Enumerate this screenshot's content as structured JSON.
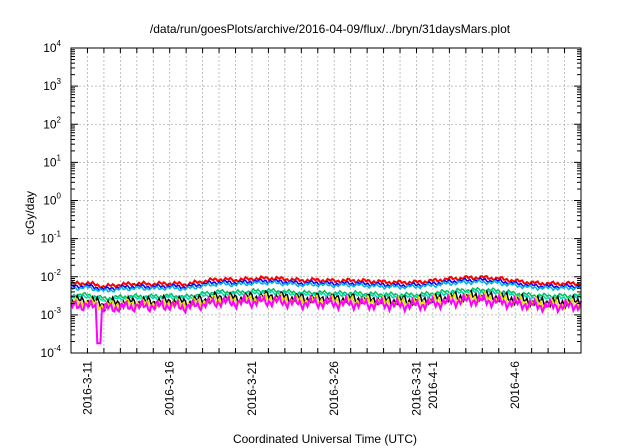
{
  "chart_data": {
    "type": "line",
    "title": "/data/run/goesPlots/archive/2016-04-09/flux/../bryn/31daysMars.plot",
    "xlabel": "Coordinated Universal Time (UTC)",
    "ylabel": "cGy/day",
    "y_scale": "log",
    "ylim": [
      0.0001,
      10000
    ],
    "xlim": [
      "2016-03-10",
      "2016-04-10"
    ],
    "grid": true,
    "y_ticks": [
      {
        "base": "10",
        "exp": "4",
        "value": 10000
      },
      {
        "base": "10",
        "exp": "3",
        "value": 1000
      },
      {
        "base": "10",
        "exp": "2",
        "value": 100
      },
      {
        "base": "10",
        "exp": "1",
        "value": 10
      },
      {
        "base": "10",
        "exp": "0",
        "value": 1
      },
      {
        "base": "10",
        "exp": "-1",
        "value": 0.1
      },
      {
        "base": "10",
        "exp": "-2",
        "value": 0.01
      },
      {
        "base": "10",
        "exp": "-3",
        "value": 0.001
      },
      {
        "base": "10",
        "exp": "-4",
        "value": 0.0001
      }
    ],
    "x_ticks": [
      {
        "label": "2016-3-11",
        "date": "2016-03-11"
      },
      {
        "label": "2016-3-16",
        "date": "2016-03-16"
      },
      {
        "label": "2016-3-21",
        "date": "2016-03-21"
      },
      {
        "label": "2016-3-26",
        "date": "2016-03-26"
      },
      {
        "label": "2016-3-31",
        "date": "2016-03-31"
      },
      {
        "label": "2016-4-1",
        "date": "2016-04-01"
      },
      {
        "label": "2016-4-6",
        "date": "2016-04-06"
      }
    ],
    "x": [
      "2016-03-10",
      "2016-03-11",
      "2016-03-12",
      "2016-03-13",
      "2016-03-14",
      "2016-03-15",
      "2016-03-16",
      "2016-03-17",
      "2016-03-18",
      "2016-03-19",
      "2016-03-20",
      "2016-03-21",
      "2016-03-22",
      "2016-03-23",
      "2016-03-24",
      "2016-03-25",
      "2016-03-26",
      "2016-03-27",
      "2016-03-28",
      "2016-03-29",
      "2016-03-30",
      "2016-03-31",
      "2016-04-01",
      "2016-04-02",
      "2016-04-03",
      "2016-04-04",
      "2016-04-05",
      "2016-04-06",
      "2016-04-07",
      "2016-04-08",
      "2016-04-09",
      "2016-04-10"
    ],
    "series": [
      {
        "color": "#ff0000",
        "values": [
          0.0065,
          0.0068,
          0.0055,
          0.0062,
          0.0066,
          0.0064,
          0.0067,
          0.0063,
          0.0075,
          0.0086,
          0.0082,
          0.0088,
          0.0092,
          0.0087,
          0.008,
          0.0082,
          0.0078,
          0.008,
          0.0077,
          0.0073,
          0.0071,
          0.0072,
          0.0078,
          0.0088,
          0.0094,
          0.0096,
          0.009,
          0.0078,
          0.0069,
          0.0066,
          0.0066,
          0.0067
        ]
      },
      {
        "color": "#0000ff",
        "values": [
          0.0055,
          0.0058,
          0.0047,
          0.0053,
          0.0056,
          0.0055,
          0.0057,
          0.0054,
          0.0064,
          0.0073,
          0.007,
          0.0075,
          0.0078,
          0.0074,
          0.0068,
          0.007,
          0.0066,
          0.0068,
          0.0065,
          0.0062,
          0.006,
          0.0061,
          0.0066,
          0.0075,
          0.008,
          0.0082,
          0.0077,
          0.0066,
          0.0059,
          0.0056,
          0.0056,
          0.0057
        ]
      },
      {
        "color": "#00b0e8",
        "values": [
          0.0049,
          0.0052,
          0.0042,
          0.0047,
          0.005,
          0.0049,
          0.0051,
          0.0048,
          0.0057,
          0.0065,
          0.0062,
          0.0067,
          0.007,
          0.0066,
          0.0061,
          0.0062,
          0.0059,
          0.0061,
          0.0058,
          0.0055,
          0.0054,
          0.0055,
          0.0059,
          0.0067,
          0.0071,
          0.0073,
          0.0068,
          0.0059,
          0.0052,
          0.005,
          0.005,
          0.0051
        ]
      },
      {
        "color": "#00c060",
        "values": [
          0.0033,
          0.0034,
          0.0027,
          0.003,
          0.0031,
          0.0031,
          0.0032,
          0.003,
          0.0036,
          0.0041,
          0.0039,
          0.0042,
          0.0044,
          0.0041,
          0.0038,
          0.0039,
          0.0037,
          0.0038,
          0.0036,
          0.0035,
          0.0034,
          0.0034,
          0.0037,
          0.0042,
          0.0045,
          0.0046,
          0.0043,
          0.0037,
          0.0033,
          0.0032,
          0.0032,
          0.0032
        ]
      },
      {
        "color": "#00d8b0",
        "values": [
          0.0029,
          0.003,
          0.0024,
          0.0027,
          0.0028,
          0.0028,
          0.0029,
          0.0027,
          0.0032,
          0.0036,
          0.0035,
          0.0037,
          0.0039,
          0.0037,
          0.0034,
          0.0035,
          0.0033,
          0.0034,
          0.0032,
          0.0031,
          0.003,
          0.003,
          0.0033,
          0.0037,
          0.004,
          0.0041,
          0.0038,
          0.0033,
          0.0029,
          0.0028,
          0.0028,
          0.0029
        ]
      },
      {
        "color": "#000000",
        "values": [
          0.0022,
          0.0024,
          0.0019,
          0.0021,
          0.0022,
          0.0022,
          0.0023,
          0.0021,
          0.0025,
          0.0029,
          0.0027,
          0.0029,
          0.0031,
          0.0029,
          0.0027,
          0.0027,
          0.0026,
          0.0027,
          0.0026,
          0.0024,
          0.0024,
          0.0024,
          0.0026,
          0.0029,
          0.0031,
          0.0032,
          0.003,
          0.0026,
          0.0023,
          0.0022,
          0.0022,
          0.0023
        ]
      },
      {
        "color": "#e0e000",
        "values": [
          0.002,
          0.0021,
          0.0017,
          0.0019,
          0.002,
          0.0019,
          0.002,
          0.0019,
          0.0022,
          0.0026,
          0.0024,
          0.0026,
          0.0027,
          0.0026,
          0.0024,
          0.0024,
          0.0023,
          0.0024,
          0.0023,
          0.0022,
          0.0021,
          0.0021,
          0.0023,
          0.0026,
          0.0028,
          0.0028,
          0.0026,
          0.0023,
          0.002,
          0.0019,
          0.0019,
          0.002
        ]
      },
      {
        "color": "#ff00ff",
        "values": [
          0.0017,
          0.0018,
          0.0015,
          0.0016,
          0.0017,
          0.0017,
          0.0018,
          0.0016,
          0.0019,
          0.0022,
          0.0021,
          0.0022,
          0.0023,
          0.0022,
          0.002,
          0.0021,
          0.002,
          0.002,
          0.0019,
          0.0019,
          0.0018,
          0.0018,
          0.002,
          0.0022,
          0.0024,
          0.0024,
          0.0022,
          0.002,
          0.0018,
          0.0017,
          0.0017,
          0.0018
        ]
      }
    ]
  }
}
